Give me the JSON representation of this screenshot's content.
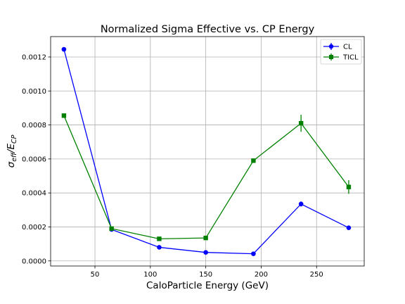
{
  "chart_data": {
    "type": "line",
    "title": "Normalized Sigma Effective vs. CP Energy",
    "xlabel": "CaloParticle Energy (GeV)",
    "ylabel_main": "σ",
    "ylabel_sub1": "eff",
    "ylabel_slash": "/E",
    "ylabel_sub2": "CP",
    "xlim": [
      10,
      293
    ],
    "ylim": [
      -3e-05,
      0.00132
    ],
    "x_ticks": [
      50,
      100,
      150,
      200,
      250
    ],
    "x_tick_labels": [
      "50",
      "100",
      "150",
      "200",
      "250"
    ],
    "y_ticks": [
      0,
      0.0002,
      0.0004,
      0.0006,
      0.0008,
      0.001,
      0.0012
    ],
    "y_tick_labels": [
      "0.0000",
      "0.0002",
      "0.0004",
      "0.0006",
      "0.0008",
      "0.0010",
      "0.0012"
    ],
    "grid": true,
    "legend_position": "top-right",
    "x": [
      22,
      65,
      108,
      150,
      193,
      236,
      279
    ],
    "series": [
      {
        "name": "CL",
        "color": "#0000ff",
        "marker": "circle",
        "values": [
          0.001245,
          0.000185,
          8e-05,
          5e-05,
          4.2e-05,
          0.000335,
          0.000195
        ],
        "errors": [
          1e-05,
          5e-06,
          5e-06,
          3e-06,
          3e-06,
          1.5e-05,
          8e-06
        ]
      },
      {
        "name": "TICL",
        "color": "#008000",
        "marker": "square",
        "values": [
          0.000855,
          0.00019,
          0.00013,
          0.000135,
          0.00059,
          0.00081,
          0.000435
        ],
        "errors": [
          1e-05,
          5e-06,
          5e-06,
          5e-06,
          8e-06,
          5e-05,
          4e-05
        ]
      }
    ]
  }
}
